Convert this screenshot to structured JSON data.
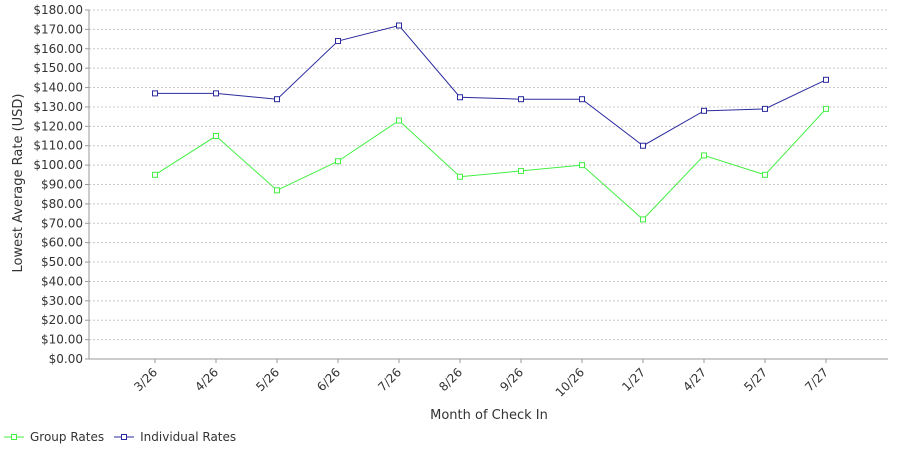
{
  "chart_data": {
    "type": "line",
    "title": "",
    "xlabel": "Month of Check In",
    "ylabel": "Lowest Average Rate (USD)",
    "categories": [
      "3/26",
      "4/26",
      "5/26",
      "6/26",
      "7/26",
      "8/26",
      "9/26",
      "10/26",
      "1/27",
      "4/27",
      "5/27",
      "7/27"
    ],
    "ylim": [
      0,
      180
    ],
    "ytick_step": 10,
    "ytick_labels": [
      "$0.00",
      "$10.00",
      "$20.00",
      "$30.00",
      "$40.00",
      "$50.00",
      "$60.00",
      "$70.00",
      "$80.00",
      "$90.00",
      "$100.00",
      "$110.00",
      "$120.00",
      "$130.00",
      "$140.00",
      "$150.00",
      "$160.00",
      "$170.00",
      "$180.00"
    ],
    "grid": true,
    "legend_position": "bottom-left",
    "series": [
      {
        "name": "Group Rates",
        "color": "#44ee44",
        "values": [
          95,
          115,
          87,
          102,
          123,
          94,
          97,
          100,
          72,
          105,
          95,
          129
        ]
      },
      {
        "name": "Individual Rates",
        "color": "#2b2b9e",
        "values": [
          137,
          137,
          134,
          164,
          172,
          135,
          134,
          134,
          110,
          128,
          129,
          144
        ]
      }
    ]
  }
}
